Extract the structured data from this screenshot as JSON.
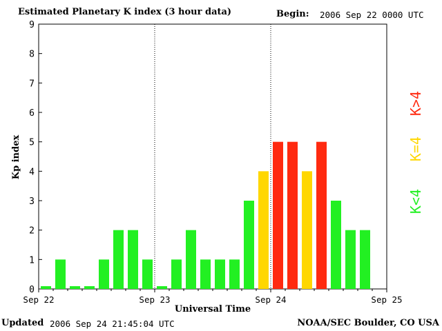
{
  "header": {
    "title": "Estimated Planetary K index (3 hour data)",
    "begin_label": "Begin:",
    "begin_value": "2006 Sep 22 0000 UTC"
  },
  "footer": {
    "updated_label": "Updated",
    "updated_value": "2006 Sep 24 21:45:04 UTC",
    "source": "NOAA/SEC Boulder, CO USA"
  },
  "legend": {
    "low": "K<4",
    "mid": "K=4",
    "high": "K>4"
  },
  "colors": {
    "low": "#22f022",
    "mid": "#ffd700",
    "high": "#ff2a10"
  },
  "chart_data": {
    "type": "bar",
    "title": "Estimated Planetary K index (3 hour data)",
    "xlabel": "Universal Time",
    "ylabel": "Kp index",
    "ylim": [
      0,
      9
    ],
    "yticks": [
      "0",
      "1",
      "2",
      "3",
      "4",
      "5",
      "6",
      "7",
      "8",
      "9"
    ],
    "xticks": [
      "Sep 22",
      "Sep 23",
      "Sep 24",
      "Sep 25"
    ],
    "bar_interval_hours": 3,
    "values": [
      0,
      1,
      0,
      0,
      1,
      2,
      2,
      1,
      0,
      1,
      2,
      1,
      1,
      1,
      3,
      4,
      5,
      5,
      4,
      5,
      3,
      2,
      2
    ],
    "legend": [
      "K<4",
      "K=4",
      "K>4"
    ]
  }
}
